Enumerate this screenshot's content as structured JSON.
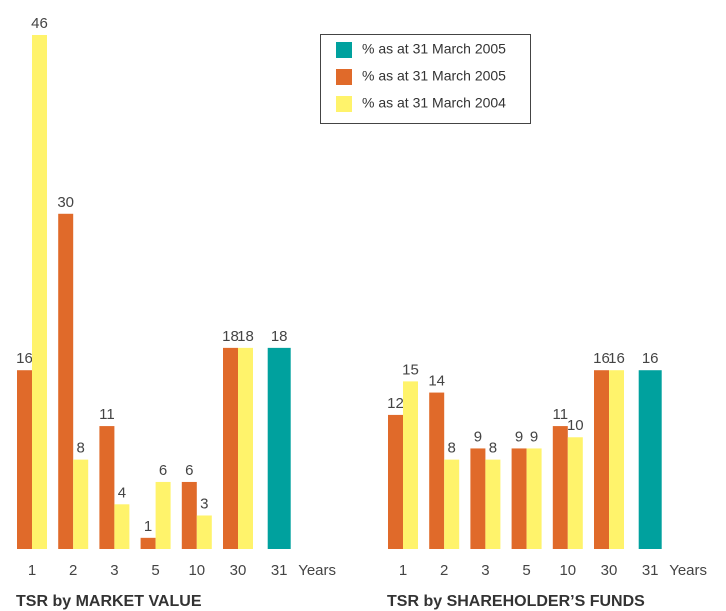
{
  "chart_data": [
    {
      "type": "bar",
      "title": "TSR by MARKET VALUE",
      "x_label": "Years",
      "categories": [
        "1",
        "2",
        "3",
        "5",
        "10",
        "30",
        "31"
      ],
      "series": [
        {
          "name": "% as at 31 March 2005",
          "color": "#00a19e",
          "values": [
            null,
            null,
            null,
            null,
            null,
            null,
            18
          ]
        },
        {
          "name": "% as at 31 March 2005",
          "color": "#e06a2a",
          "values": [
            16,
            30,
            11,
            1,
            6,
            18,
            null
          ]
        },
        {
          "name": "% as at 31 March 2004",
          "color": "#fff36b",
          "values": [
            46,
            8,
            4,
            6,
            3,
            18,
            null
          ]
        }
      ],
      "ylim": [
        0,
        46
      ]
    },
    {
      "type": "bar",
      "title": "TSR by SHAREHOLDER’S FUNDS",
      "x_label": "Years",
      "categories": [
        "1",
        "2",
        "3",
        "5",
        "10",
        "30",
        "31"
      ],
      "series": [
        {
          "color": "#00a19e",
          "values": [
            null,
            null,
            null,
            null,
            null,
            null,
            16
          ]
        },
        {
          "color": "#e06a2a",
          "values": [
            12,
            14,
            9,
            9,
            11,
            16,
            null
          ]
        },
        {
          "color": "#fff36b",
          "values": [
            15,
            8,
            8,
            9,
            10,
            16,
            null
          ]
        }
      ],
      "ylim": [
        0,
        46
      ]
    }
  ]
}
